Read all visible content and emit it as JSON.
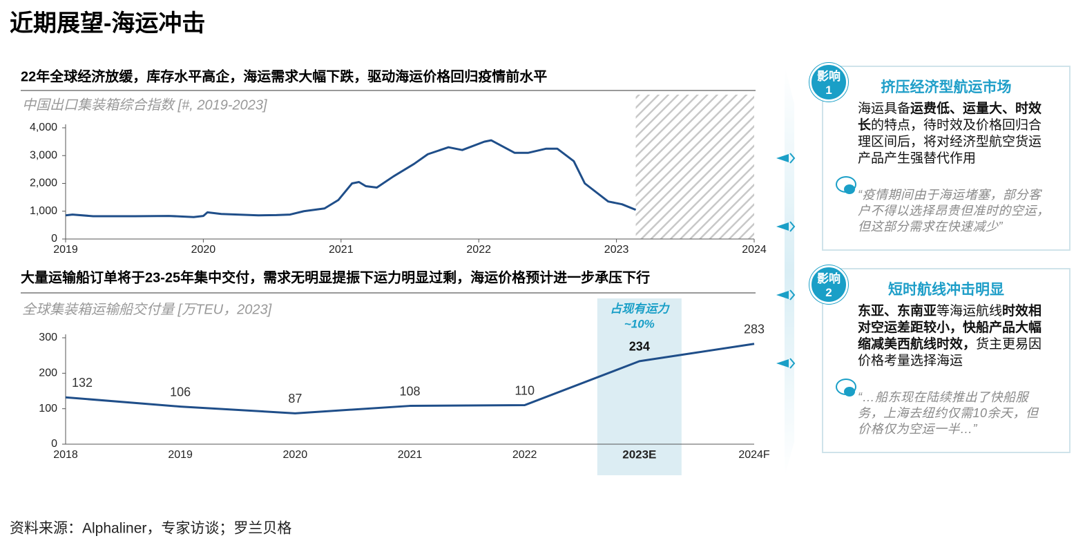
{
  "title": "近期展望-海运冲击",
  "chart_data": [
    {
      "type": "line",
      "heading": "22年全球经济放缓，库存水平高企，海运需求大幅下跌，驱动海运价格回归疫情前水平",
      "subtitle": "中国出口集装箱综合指数 [#, 2019-2023]",
      "x": [
        2019.0,
        2019.05,
        2019.2,
        2019.5,
        2019.75,
        2019.93,
        2020.0,
        2020.03,
        2020.13,
        2020.4,
        2020.53,
        2020.63,
        2020.73,
        2020.88,
        2020.98,
        2021.08,
        2021.13,
        2021.18,
        2021.26,
        2021.38,
        2021.53,
        2021.63,
        2021.78,
        2021.88,
        2022.04,
        2022.09,
        2022.26,
        2022.36,
        2022.49,
        2022.57,
        2022.69,
        2022.77,
        2022.94,
        2023.04,
        2023.14
      ],
      "values": [
        850,
        880,
        820,
        820,
        830,
        790,
        830,
        960,
        900,
        850,
        860,
        880,
        1000,
        1100,
        1400,
        2000,
        2050,
        1900,
        1850,
        2250,
        2700,
        3050,
        3300,
        3200,
        3500,
        3550,
        3100,
        3100,
        3250,
        3250,
        2800,
        2000,
        1350,
        1250,
        1050
      ],
      "color": "#1f4e89",
      "xlim": [
        2019,
        2024
      ],
      "xticks": [
        2019,
        2020,
        2021,
        2022,
        2023,
        2024
      ],
      "ylim": [
        0,
        4000
      ],
      "yticks": [
        0,
        {
          "value": 1000,
          "label": "1,000"
        },
        {
          "value": 2000,
          "label": "2,000"
        },
        {
          "value": 3000,
          "label": "3,000"
        },
        {
          "value": 4000,
          "label": "4,000"
        }
      ],
      "forecast_hatch": true
    },
    {
      "type": "line",
      "heading": "大量运输船订单将于23-25年集中交付，需求无明显提振下运力明显过剩，海运价格预计进一步承压下行",
      "subtitle": "全球集装箱运输船交付量 [万TEU，2023]",
      "categories": [
        "2018",
        "2019",
        "2020",
        "2021",
        "2022",
        "2023E",
        "2024F"
      ],
      "values": [
        132,
        106,
        87,
        108,
        110,
        234,
        283
      ],
      "color": "#1f4e89",
      "ylim": [
        0,
        300
      ],
      "yticks": [
        0,
        100,
        200,
        300
      ],
      "highlight_category": 5,
      "annotation": [
        "占现有运力",
        "~10%"
      ]
    }
  ],
  "panels": [
    {
      "badge": "影响",
      "number": "1",
      "heading": "挤压经济型航运市场",
      "body": [
        {
          "text": "海运具备",
          "bold": false
        },
        {
          "text": "运费低、运量大、时效长",
          "bold": true
        },
        {
          "text": "的特点，待时效及价格回归合理区间后，将对经济型航空货运产品产生强替代作用",
          "bold": false
        }
      ],
      "quote": "“疫情期间由于海运堵塞，部分客户不得以选择昂贵但准时的空运，但这部分需求在快速减少”"
    },
    {
      "badge": "影响",
      "number": "2",
      "heading": "短时航线冲击明显",
      "body": [
        {
          "text": "东亚、东南亚",
          "bold": true
        },
        {
          "text": "等海运航线",
          "bold": false
        },
        {
          "text": "时效相对空运差距较小，快船产品大幅缩减美西航线时效，",
          "bold": true
        },
        {
          "text": "货主更易因价格考量选择海运",
          "bold": false
        }
      ],
      "quote": "“…船东现在陆续推出了快船服务，上海去纽约仅需10余天，但价格仅为空运一半…”"
    }
  ],
  "source": "资料来源：Alphaliner，专家访谈；罗兰贝格"
}
